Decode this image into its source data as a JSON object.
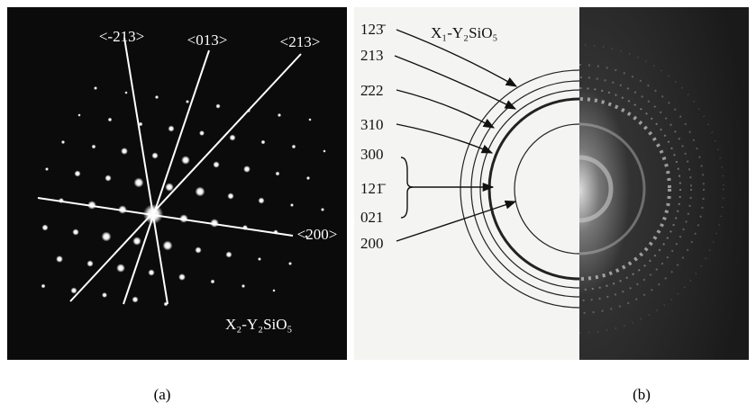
{
  "panels": [
    {
      "label": "(a)",
      "directions": [
        "<-213>",
        "<013>",
        "<213>",
        "<200>"
      ],
      "phase": "X₂-Y₂SiO₅"
    },
    {
      "label": "(b)",
      "phase": "X₁-Y₂SiO₅",
      "reflections": [
        "123̄",
        "213",
        "2̄22",
        "310",
        "300",
        "121̄",
        "021",
        "200"
      ]
    }
  ]
}
